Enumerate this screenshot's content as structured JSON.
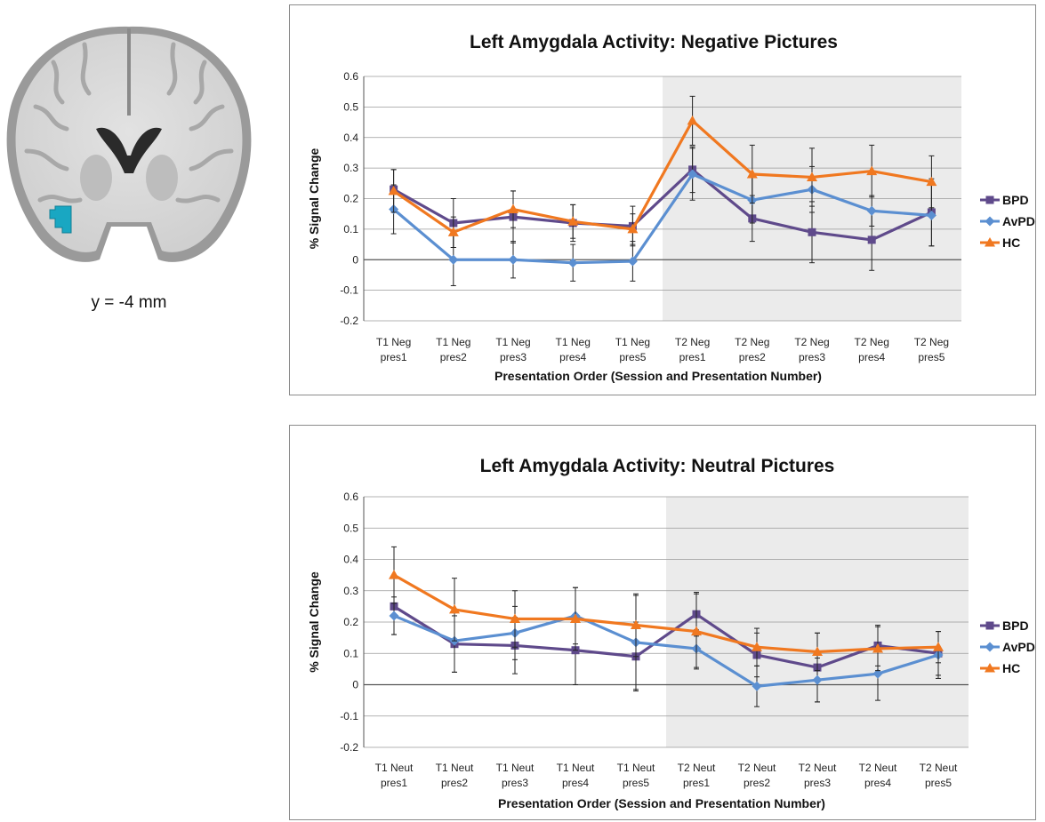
{
  "brain_image": {
    "caption": "y = -4 mm",
    "roi_color": "#19a7c2"
  },
  "chart_data": [
    {
      "type": "line",
      "title": "Left Amygdala Activity: Negative Pictures",
      "xlabel": "Presentation Order (Session and Presentation Number)",
      "ylabel": "% Signal Change",
      "ylim": [
        -0.2,
        0.6
      ],
      "yticks": [
        "0.6",
        "0.5",
        "0.4",
        "0.3",
        "0.2",
        "0.1",
        "0",
        "-0.1",
        "-0.2"
      ],
      "ytick_values": [
        0.6,
        0.5,
        0.4,
        0.3,
        0.2,
        0.1,
        0,
        -0.1,
        -0.2
      ],
      "categories": [
        [
          "T1 Neg",
          "pres1"
        ],
        [
          "T1 Neg",
          "pres2"
        ],
        [
          "T1 Neg",
          "pres3"
        ],
        [
          "T1 Neg",
          "pres4"
        ],
        [
          "T1 Neg",
          "pres5"
        ],
        [
          "T2 Neg",
          "pres1"
        ],
        [
          "T2 Neg",
          "pres2"
        ],
        [
          "T2 Neg",
          "pres3"
        ],
        [
          "T2 Neg",
          "pres4"
        ],
        [
          "T2 Neg",
          "pres5"
        ]
      ],
      "shaded_range": [
        5,
        9
      ],
      "shade_color": "#ebebeb",
      "grid": true,
      "legend_position": "right",
      "series": [
        {
          "name": "BPD",
          "color": "#5f4a8b",
          "marker": "square",
          "values": [
            0.23,
            0.12,
            0.14,
            0.12,
            0.11,
            0.295,
            0.135,
            0.09,
            0.065,
            0.155
          ],
          "errors": [
            0.065,
            0.08,
            0.085,
            0.06,
            0.065,
            0.075,
            0.075,
            0.1,
            0.1,
            0.11
          ]
        },
        {
          "name": "AvPD",
          "color": "#5b8fd1",
          "marker": "diamond",
          "values": [
            0.165,
            0.0,
            0.0,
            -0.01,
            -0.005,
            0.28,
            0.195,
            0.23,
            0.16,
            0.145
          ],
          "errors": [
            0.08,
            0.085,
            0.06,
            0.06,
            0.065,
            0.085,
            0.075,
            0.075,
            0.05,
            0.1
          ]
        },
        {
          "name": "HC",
          "color": "#f07820",
          "marker": "triangle",
          "values": [
            0.225,
            0.09,
            0.165,
            0.125,
            0.1,
            0.455,
            0.28,
            0.27,
            0.29,
            0.255
          ],
          "errors": [
            0.07,
            0.05,
            0.06,
            0.055,
            0.05,
            0.08,
            0.095,
            0.095,
            0.085,
            0.085
          ]
        }
      ]
    },
    {
      "type": "line",
      "title": "Left Amygdala Activity: Neutral Pictures",
      "xlabel": "Presentation Order (Session and Presentation Number)",
      "ylabel": "% Signal Change",
      "ylim": [
        -0.2,
        0.6
      ],
      "yticks": [
        "0.6",
        "0.5",
        "0.4",
        "0.3",
        "0.2",
        "0.1",
        "0",
        "-0.1",
        "-0.2"
      ],
      "ytick_values": [
        0.6,
        0.5,
        0.4,
        0.3,
        0.2,
        0.1,
        0,
        -0.1,
        -0.2
      ],
      "categories": [
        [
          "T1 Neut",
          "pres1"
        ],
        [
          "T1 Neut",
          "pres2"
        ],
        [
          "T1 Neut",
          "pres3"
        ],
        [
          "T1 Neut",
          "pres4"
        ],
        [
          "T1 Neut",
          "pres5"
        ],
        [
          "T2 Neut",
          "pres1"
        ],
        [
          "T2 Neut",
          "pres2"
        ],
        [
          "T2 Neut",
          "pres3"
        ],
        [
          "T2 Neut",
          "pres4"
        ],
        [
          "T2 Neut",
          "pres5"
        ]
      ],
      "shaded_range": [
        5,
        9
      ],
      "shade_color": "#ebebeb",
      "grid": true,
      "legend_position": "right",
      "series": [
        {
          "name": "BPD",
          "color": "#5f4a8b",
          "marker": "square",
          "values": [
            0.25,
            0.13,
            0.125,
            0.11,
            0.09,
            0.225,
            0.095,
            0.055,
            0.125,
            0.1
          ],
          "errors": [
            0.09,
            0.09,
            0.09,
            0.11,
            0.11,
            0.07,
            0.07,
            0.11,
            0.065,
            0.07
          ]
        },
        {
          "name": "AvPD",
          "color": "#5b8fd1",
          "marker": "diamond",
          "values": [
            0.22,
            0.14,
            0.165,
            0.22,
            0.135,
            0.115,
            -0.005,
            0.015,
            0.035,
            0.095
          ],
          "errors": [
            0.06,
            0.1,
            0.085,
            0.09,
            0.15,
            0.06,
            0.065,
            0.07,
            0.085,
            0.075
          ]
        },
        {
          "name": "HC",
          "color": "#f07820",
          "marker": "triangle",
          "values": [
            0.35,
            0.24,
            0.21,
            0.21,
            0.19,
            0.17,
            0.12,
            0.105,
            0.115,
            0.12
          ],
          "errors": [
            0.09,
            0.1,
            0.09,
            0.1,
            0.1,
            0.12,
            0.06,
            0.06,
            0.07,
            0.05
          ]
        }
      ]
    }
  ]
}
